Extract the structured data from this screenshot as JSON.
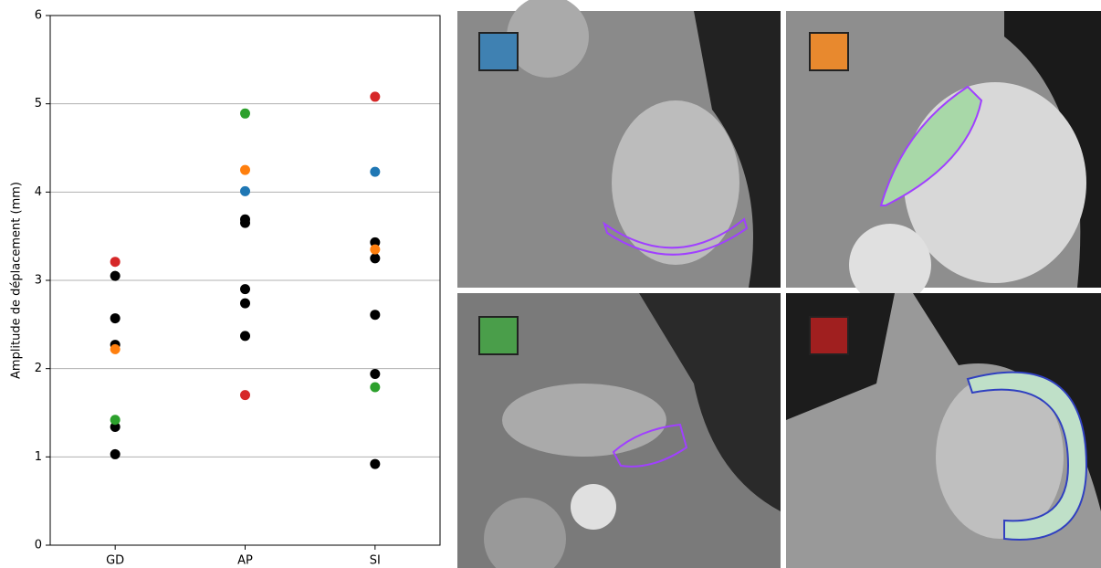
{
  "chart_data": {
    "type": "strip",
    "ylabel": "Amplitude de déplacement (mm)",
    "categories": [
      "GD",
      "AP",
      "SI"
    ],
    "ylim": [
      0,
      6
    ],
    "yticks": [
      0,
      1,
      2,
      3,
      4,
      5,
      6
    ],
    "grid": true,
    "series": [
      {
        "color": "#000000",
        "values": [
          [
            3.05,
            2.57,
            2.27,
            1.34,
            1.03
          ],
          [
            3.69,
            3.65,
            2.9,
            2.74,
            2.37
          ],
          [
            3.43,
            3.25,
            2.61,
            1.94,
            0.92
          ]
        ]
      },
      {
        "color": "#d62728",
        "values": [
          3.21,
          1.7,
          5.08
        ]
      },
      {
        "color": "#ff7f0e",
        "values": [
          2.22,
          4.25,
          3.35
        ]
      },
      {
        "color": "#1f77b4",
        "values": [
          null,
          4.01,
          4.23
        ]
      },
      {
        "color": "#2ca02c",
        "values": [
          1.42,
          4.89,
          1.79
        ]
      }
    ]
  }
}
